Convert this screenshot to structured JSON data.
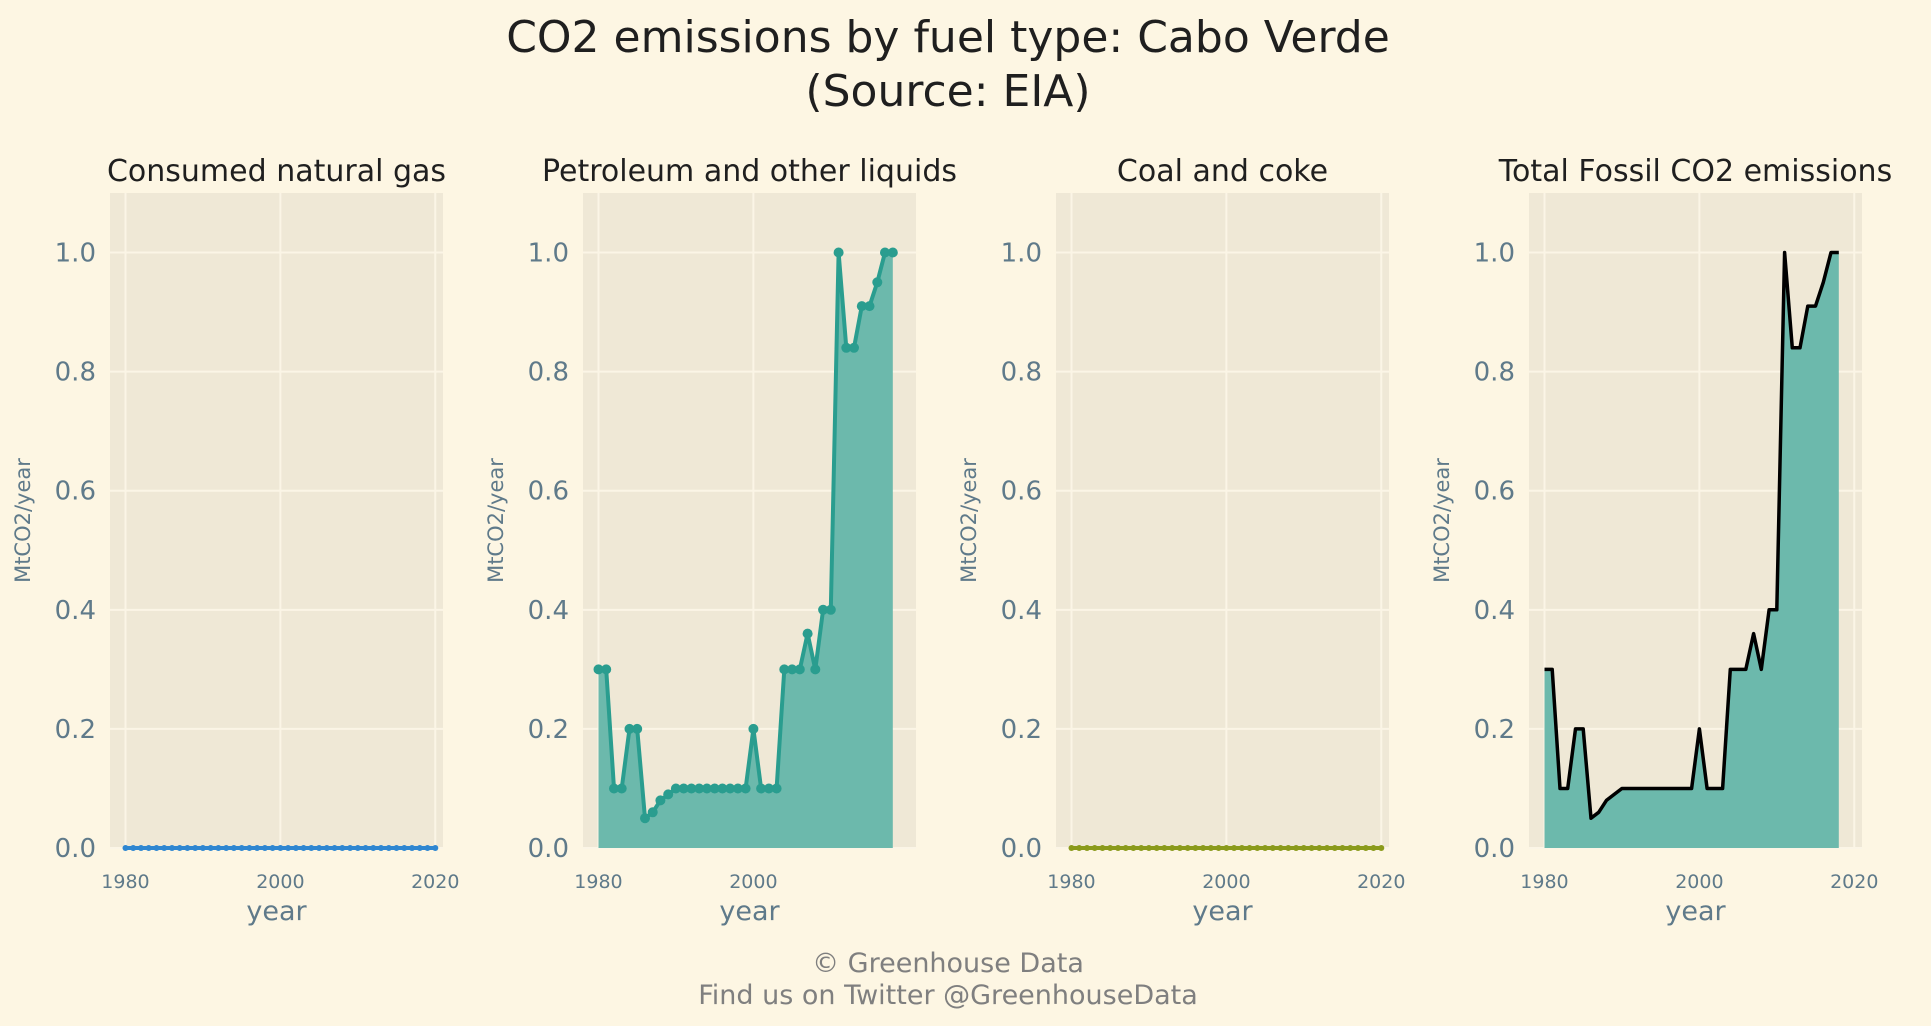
{
  "page": {
    "title_line1": "CO2 emissions by fuel type: Cabo Verde",
    "title_line2": "(Source: EIA)",
    "footer_line1": "© Greenhouse Data",
    "footer_line2": "Find us on Twitter @GreenhouseData"
  },
  "colors": {
    "background": "#fdf6e3",
    "panel": "#efe8d6",
    "grid": "#fbf5e6",
    "tick_text": "#5f7a8a",
    "gas": "#2e86d1",
    "petroleum": "#2a9d8f",
    "petroleum_fill": "#6cb9ac",
    "coal": "#8a9a1b",
    "total_line": "#000000"
  },
  "chart_data": [
    {
      "type": "line",
      "title": "Consumed natural gas",
      "xlabel": "year",
      "ylabel": "MtCO2/year",
      "xlim": [
        1978,
        2021
      ],
      "ylim": [
        0,
        1.1
      ],
      "xticks": [
        1980,
        2000,
        2020
      ],
      "xtick_labels": [
        "1980",
        "2000",
        "2020"
      ],
      "yticks": [
        0.0,
        0.2,
        0.4,
        0.6,
        0.8,
        1.0
      ],
      "ytick_labels": [
        "0.0",
        "0.2",
        "0.4",
        "0.6",
        "0.8",
        "1.0"
      ],
      "style": "gas",
      "series": [
        {
          "x": [
            1980,
            1981,
            1982,
            1983,
            1984,
            1985,
            1986,
            1987,
            1988,
            1989,
            1990,
            1991,
            1992,
            1993,
            1994,
            1995,
            1996,
            1997,
            1998,
            1999,
            2000,
            2001,
            2002,
            2003,
            2004,
            2005,
            2006,
            2007,
            2008,
            2009,
            2010,
            2011,
            2012,
            2013,
            2014,
            2015,
            2016,
            2017,
            2018,
            2019,
            2020
          ],
          "values": [
            0,
            0,
            0,
            0,
            0,
            0,
            0,
            0,
            0,
            0,
            0,
            0,
            0,
            0,
            0,
            0,
            0,
            0,
            0,
            0,
            0,
            0,
            0,
            0,
            0,
            0,
            0,
            0,
            0,
            0,
            0,
            0,
            0,
            0,
            0,
            0,
            0,
            0,
            0,
            0,
            0
          ]
        }
      ]
    },
    {
      "type": "area",
      "title": "Petroleum and other liquids",
      "xlabel": "year",
      "ylabel": "MtCO2/year",
      "xlim": [
        1978,
        2021
      ],
      "ylim": [
        0,
        1.1
      ],
      "xticks": [
        1980,
        2000
      ],
      "xtick_labels": [
        "1980",
        "2000"
      ],
      "yticks": [
        0.0,
        0.2,
        0.4,
        0.6,
        0.8,
        1.0
      ],
      "ytick_labels": [
        "0.0",
        "0.2",
        "0.4",
        "0.6",
        "0.8",
        "1.0"
      ],
      "style": "petroleum",
      "series": [
        {
          "x": [
            1980,
            1981,
            1982,
            1983,
            1984,
            1985,
            1986,
            1987,
            1988,
            1989,
            1990,
            1991,
            1992,
            1993,
            1994,
            1995,
            1996,
            1997,
            1998,
            1999,
            2000,
            2001,
            2002,
            2003,
            2004,
            2005,
            2006,
            2007,
            2008,
            2009,
            2010,
            2011,
            2012,
            2013,
            2014,
            2015,
            2016,
            2017,
            2018
          ],
          "values": [
            0.3,
            0.3,
            0.1,
            0.1,
            0.2,
            0.2,
            0.05,
            0.06,
            0.08,
            0.09,
            0.1,
            0.1,
            0.1,
            0.1,
            0.1,
            0.1,
            0.1,
            0.1,
            0.1,
            0.1,
            0.2,
            0.1,
            0.1,
            0.1,
            0.3,
            0.3,
            0.3,
            0.36,
            0.3,
            0.4,
            0.4,
            1.0,
            0.84,
            0.84,
            0.91,
            0.91,
            0.95,
            1.0,
            1.0
          ]
        }
      ]
    },
    {
      "type": "line",
      "title": "Coal and coke",
      "xlabel": "year",
      "ylabel": "MtCO2/year",
      "xlim": [
        1978,
        2021
      ],
      "ylim": [
        0,
        1.1
      ],
      "xticks": [
        1980,
        2000,
        2020
      ],
      "xtick_labels": [
        "1980",
        "2000",
        "2020"
      ],
      "yticks": [
        0.0,
        0.2,
        0.4,
        0.6,
        0.8,
        1.0
      ],
      "ytick_labels": [
        "0.0",
        "0.2",
        "0.4",
        "0.6",
        "0.8",
        "1.0"
      ],
      "style": "coal",
      "series": [
        {
          "x": [
            1980,
            1981,
            1982,
            1983,
            1984,
            1985,
            1986,
            1987,
            1988,
            1989,
            1990,
            1991,
            1992,
            1993,
            1994,
            1995,
            1996,
            1997,
            1998,
            1999,
            2000,
            2001,
            2002,
            2003,
            2004,
            2005,
            2006,
            2007,
            2008,
            2009,
            2010,
            2011,
            2012,
            2013,
            2014,
            2015,
            2016,
            2017,
            2018,
            2019,
            2020
          ],
          "values": [
            0,
            0,
            0,
            0,
            0,
            0,
            0,
            0,
            0,
            0,
            0,
            0,
            0,
            0,
            0,
            0,
            0,
            0,
            0,
            0,
            0,
            0,
            0,
            0,
            0,
            0,
            0,
            0,
            0,
            0,
            0,
            0,
            0,
            0,
            0,
            0,
            0,
            0,
            0,
            0,
            0
          ]
        }
      ]
    },
    {
      "type": "area",
      "title": "Total Fossil CO2 emissions",
      "xlabel": "year",
      "ylabel": "MtCO2/year",
      "xlim": [
        1978,
        2021
      ],
      "ylim": [
        0,
        1.1
      ],
      "xticks": [
        1980,
        2000,
        2020
      ],
      "xtick_labels": [
        "1980",
        "2000",
        "2020"
      ],
      "yticks": [
        0.0,
        0.2,
        0.4,
        0.6,
        0.8,
        1.0
      ],
      "ytick_labels": [
        "0.0",
        "0.2",
        "0.4",
        "0.6",
        "0.8",
        "1.0"
      ],
      "style": "total",
      "series": [
        {
          "x": [
            1980,
            1981,
            1982,
            1983,
            1984,
            1985,
            1986,
            1987,
            1988,
            1989,
            1990,
            1991,
            1992,
            1993,
            1994,
            1995,
            1996,
            1997,
            1998,
            1999,
            2000,
            2001,
            2002,
            2003,
            2004,
            2005,
            2006,
            2007,
            2008,
            2009,
            2010,
            2011,
            2012,
            2013,
            2014,
            2015,
            2016,
            2017,
            2018
          ],
          "values": [
            0.3,
            0.3,
            0.1,
            0.1,
            0.2,
            0.2,
            0.05,
            0.06,
            0.08,
            0.09,
            0.1,
            0.1,
            0.1,
            0.1,
            0.1,
            0.1,
            0.1,
            0.1,
            0.1,
            0.1,
            0.2,
            0.1,
            0.1,
            0.1,
            0.3,
            0.3,
            0.3,
            0.36,
            0.3,
            0.4,
            0.4,
            1.0,
            0.84,
            0.84,
            0.91,
            0.91,
            0.95,
            1.0,
            1.0
          ]
        }
      ]
    }
  ]
}
